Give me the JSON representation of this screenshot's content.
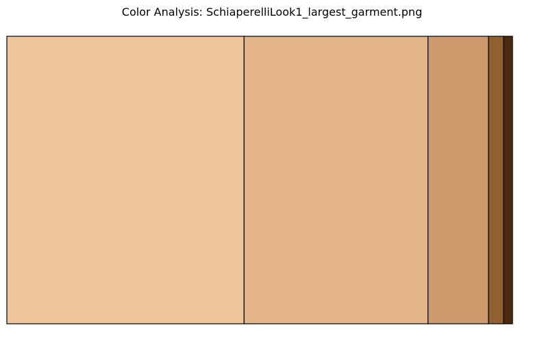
{
  "chart_data": {
    "type": "bar",
    "title": "Color Analysis: SchiaperelliLook1_largest_garment.png",
    "orientation": "horizontal-stacked",
    "grid": false,
    "axes_visible": false,
    "series": [
      {
        "color": "#efc69b",
        "value": 0.4692
      },
      {
        "color": "#e3b488",
        "value": 0.3637
      },
      {
        "color": "#cd996d",
        "value": 0.1197
      },
      {
        "color": "#8f6030",
        "value": 0.0299
      },
      {
        "color": "#4a2b12",
        "value": 0.0175
      }
    ]
  }
}
